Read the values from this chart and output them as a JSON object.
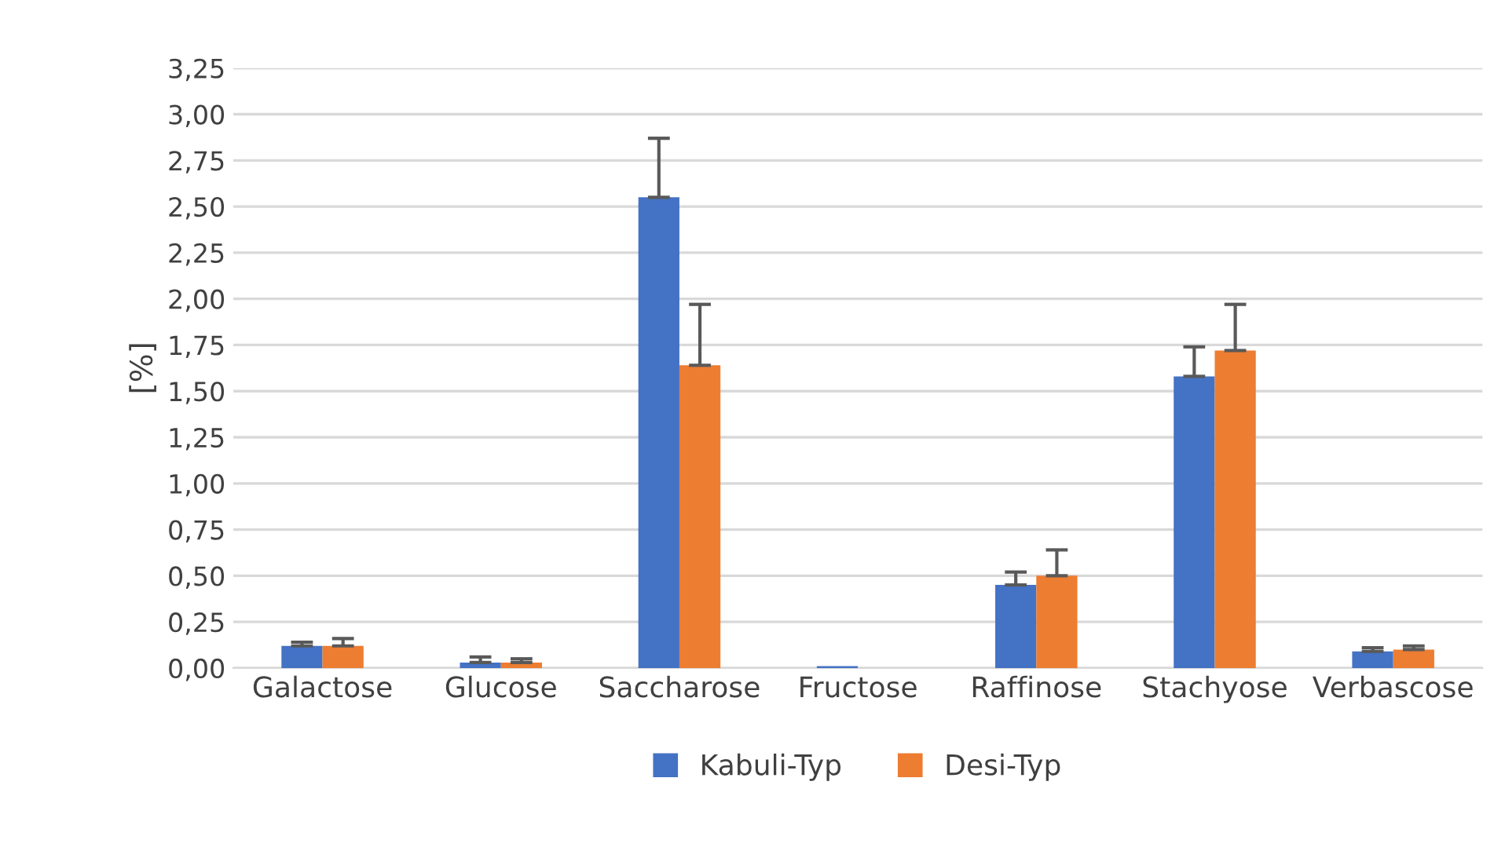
{
  "chart_data": {
    "type": "bar",
    "ylabel": "[%]",
    "categories": [
      "Galactose",
      "Glucose",
      "Saccharose",
      "Fructose",
      "Raffinose",
      "Stachyose",
      "Verbascose"
    ],
    "series": [
      {
        "name": "Kabuli-Typ",
        "color": "#4472c4",
        "values": [
          0.12,
          0.03,
          2.55,
          0.01,
          0.45,
          1.58,
          0.09
        ],
        "errors": [
          [
            0.12,
            0.14
          ],
          [
            0.03,
            0.06
          ],
          [
            2.55,
            2.87
          ],
          null,
          [
            0.45,
            0.52
          ],
          [
            1.58,
            1.74
          ],
          [
            0.09,
            0.11
          ]
        ]
      },
      {
        "name": "Desi-Typ",
        "color": "#ed7d31",
        "values": [
          0.12,
          0.03,
          1.64,
          0.0,
          0.5,
          1.72,
          0.1
        ],
        "errors": [
          [
            0.12,
            0.16
          ],
          [
            0.03,
            0.05
          ],
          [
            1.64,
            1.97
          ],
          null,
          [
            0.5,
            0.64
          ],
          [
            1.72,
            1.97
          ],
          [
            0.1,
            0.12
          ]
        ]
      }
    ],
    "ylim": [
      0,
      3.25
    ],
    "yticks": [
      {
        "value": 0,
        "label": "0,00"
      },
      {
        "value": 0.25,
        "label": "0,25"
      },
      {
        "value": 0.5,
        "label": "0,50"
      },
      {
        "value": 0.75,
        "label": "0,75"
      },
      {
        "value": 1,
        "label": "1,00"
      },
      {
        "value": 1.25,
        "label": "1,25"
      },
      {
        "value": 1.5,
        "label": "1,50"
      },
      {
        "value": 1.75,
        "label": "1,75"
      },
      {
        "value": 2,
        "label": "2,00"
      },
      {
        "value": 2.25,
        "label": "2,25"
      },
      {
        "value": 2.5,
        "label": "2,50"
      },
      {
        "value": 2.75,
        "label": "2,75"
      },
      {
        "value": 3,
        "label": "3,00"
      },
      {
        "value": 3.25,
        "label": "3,25"
      }
    ],
    "grid": "y",
    "legend": "bottom"
  }
}
